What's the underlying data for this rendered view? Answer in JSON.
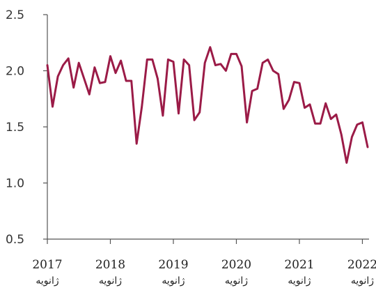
{
  "chart_data": {
    "type": "line",
    "title": "",
    "xlabel": "",
    "ylabel": "",
    "ylim": [
      0.5,
      2.5
    ],
    "yticks": [
      "2.5",
      "2.0",
      "1.5",
      "1.0",
      "0.5"
    ],
    "ytick_values": [
      2.5,
      2.0,
      1.5,
      1.0,
      0.5
    ],
    "grid": false,
    "legend": "none",
    "xtick_labels": [
      {
        "year": "2017",
        "month": "ژانویه"
      },
      {
        "year": "2018",
        "month": "ژانویه"
      },
      {
        "year": "2019",
        "month": "ژانویه"
      },
      {
        "year": "2020",
        "month": "ژانویه"
      },
      {
        "year": "2021",
        "month": "ژانویه"
      },
      {
        "year": "2022",
        "month": "ژانویه"
      }
    ],
    "series": [
      {
        "color": "#9b1b47",
        "start": "2017-01",
        "values": [
          2.05,
          1.68,
          1.95,
          2.05,
          2.11,
          1.85,
          2.07,
          1.93,
          1.79,
          2.03,
          1.89,
          1.9,
          2.13,
          1.98,
          2.09,
          1.91,
          1.91,
          1.35,
          1.68,
          2.1,
          2.1,
          1.93,
          1.6,
          2.1,
          2.08,
          1.62,
          2.1,
          2.05,
          1.56,
          1.63,
          2.07,
          2.21,
          2.05,
          2.06,
          2.0,
          2.15,
          2.15,
          2.04,
          1.54,
          1.82,
          1.84,
          2.07,
          2.1,
          2.0,
          1.97,
          1.66,
          1.74,
          1.9,
          1.89,
          1.67,
          1.7,
          1.53,
          1.53,
          1.71,
          1.57,
          1.61,
          1.43,
          1.18,
          1.41,
          1.52,
          1.54,
          1.32
        ]
      }
    ]
  }
}
